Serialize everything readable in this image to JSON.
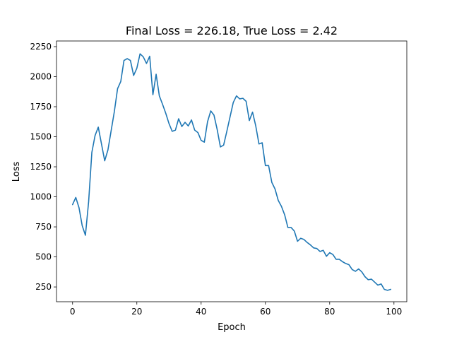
{
  "chart_data": {
    "type": "line",
    "title": "Final Loss = 226.18, True Loss = 2.42",
    "xlabel": "Epoch",
    "ylabel": "Loss",
    "xlim": [
      -5,
      104
    ],
    "ylim": [
      127,
      2297
    ],
    "xticks": [
      0,
      20,
      40,
      60,
      80,
      100
    ],
    "yticks": [
      250,
      500,
      750,
      1000,
      1250,
      1500,
      1750,
      2000,
      2250
    ],
    "grid": false,
    "legend": "none",
    "series": [
      {
        "color": "#1f77b4",
        "x": [
          0,
          1,
          2,
          3,
          4,
          5,
          6,
          7,
          8,
          9,
          10,
          11,
          12,
          13,
          14,
          15,
          16,
          17,
          18,
          19,
          20,
          21,
          22,
          23,
          24,
          25,
          26,
          27,
          28,
          29,
          30,
          31,
          32,
          33,
          34,
          35,
          36,
          37,
          38,
          39,
          40,
          41,
          42,
          43,
          44,
          45,
          46,
          47,
          48,
          49,
          50,
          51,
          52,
          53,
          54,
          55,
          56,
          57,
          58,
          59,
          60,
          61,
          62,
          63,
          64,
          65,
          66,
          67,
          68,
          69,
          70,
          71,
          72,
          73,
          74,
          75,
          76,
          77,
          78,
          79,
          80,
          81,
          82,
          83,
          84,
          85,
          86,
          87,
          88,
          89,
          90,
          91,
          92,
          93,
          94,
          95,
          96,
          97,
          98,
          99
        ],
        "values": [
          935,
          995,
          910,
          760,
          680,
          960,
          1370,
          1510,
          1580,
          1440,
          1300,
          1390,
          1550,
          1710,
          1900,
          1960,
          2135,
          2150,
          2135,
          2010,
          2070,
          2190,
          2165,
          2110,
          2170,
          1850,
          2020,
          1840,
          1770,
          1695,
          1610,
          1545,
          1555,
          1650,
          1585,
          1620,
          1590,
          1640,
          1555,
          1535,
          1470,
          1455,
          1625,
          1715,
          1680,
          1560,
          1415,
          1430,
          1545,
          1665,
          1785,
          1840,
          1815,
          1820,
          1795,
          1635,
          1705,
          1590,
          1440,
          1450,
          1260,
          1260,
          1120,
          1065,
          970,
          920,
          850,
          745,
          745,
          715,
          630,
          655,
          645,
          620,
          600,
          575,
          570,
          545,
          555,
          505,
          535,
          520,
          480,
          480,
          460,
          445,
          435,
          395,
          380,
          400,
          375,
          335,
          310,
          315,
          290,
          265,
          275,
          230,
          222,
          230
        ]
      }
    ]
  }
}
